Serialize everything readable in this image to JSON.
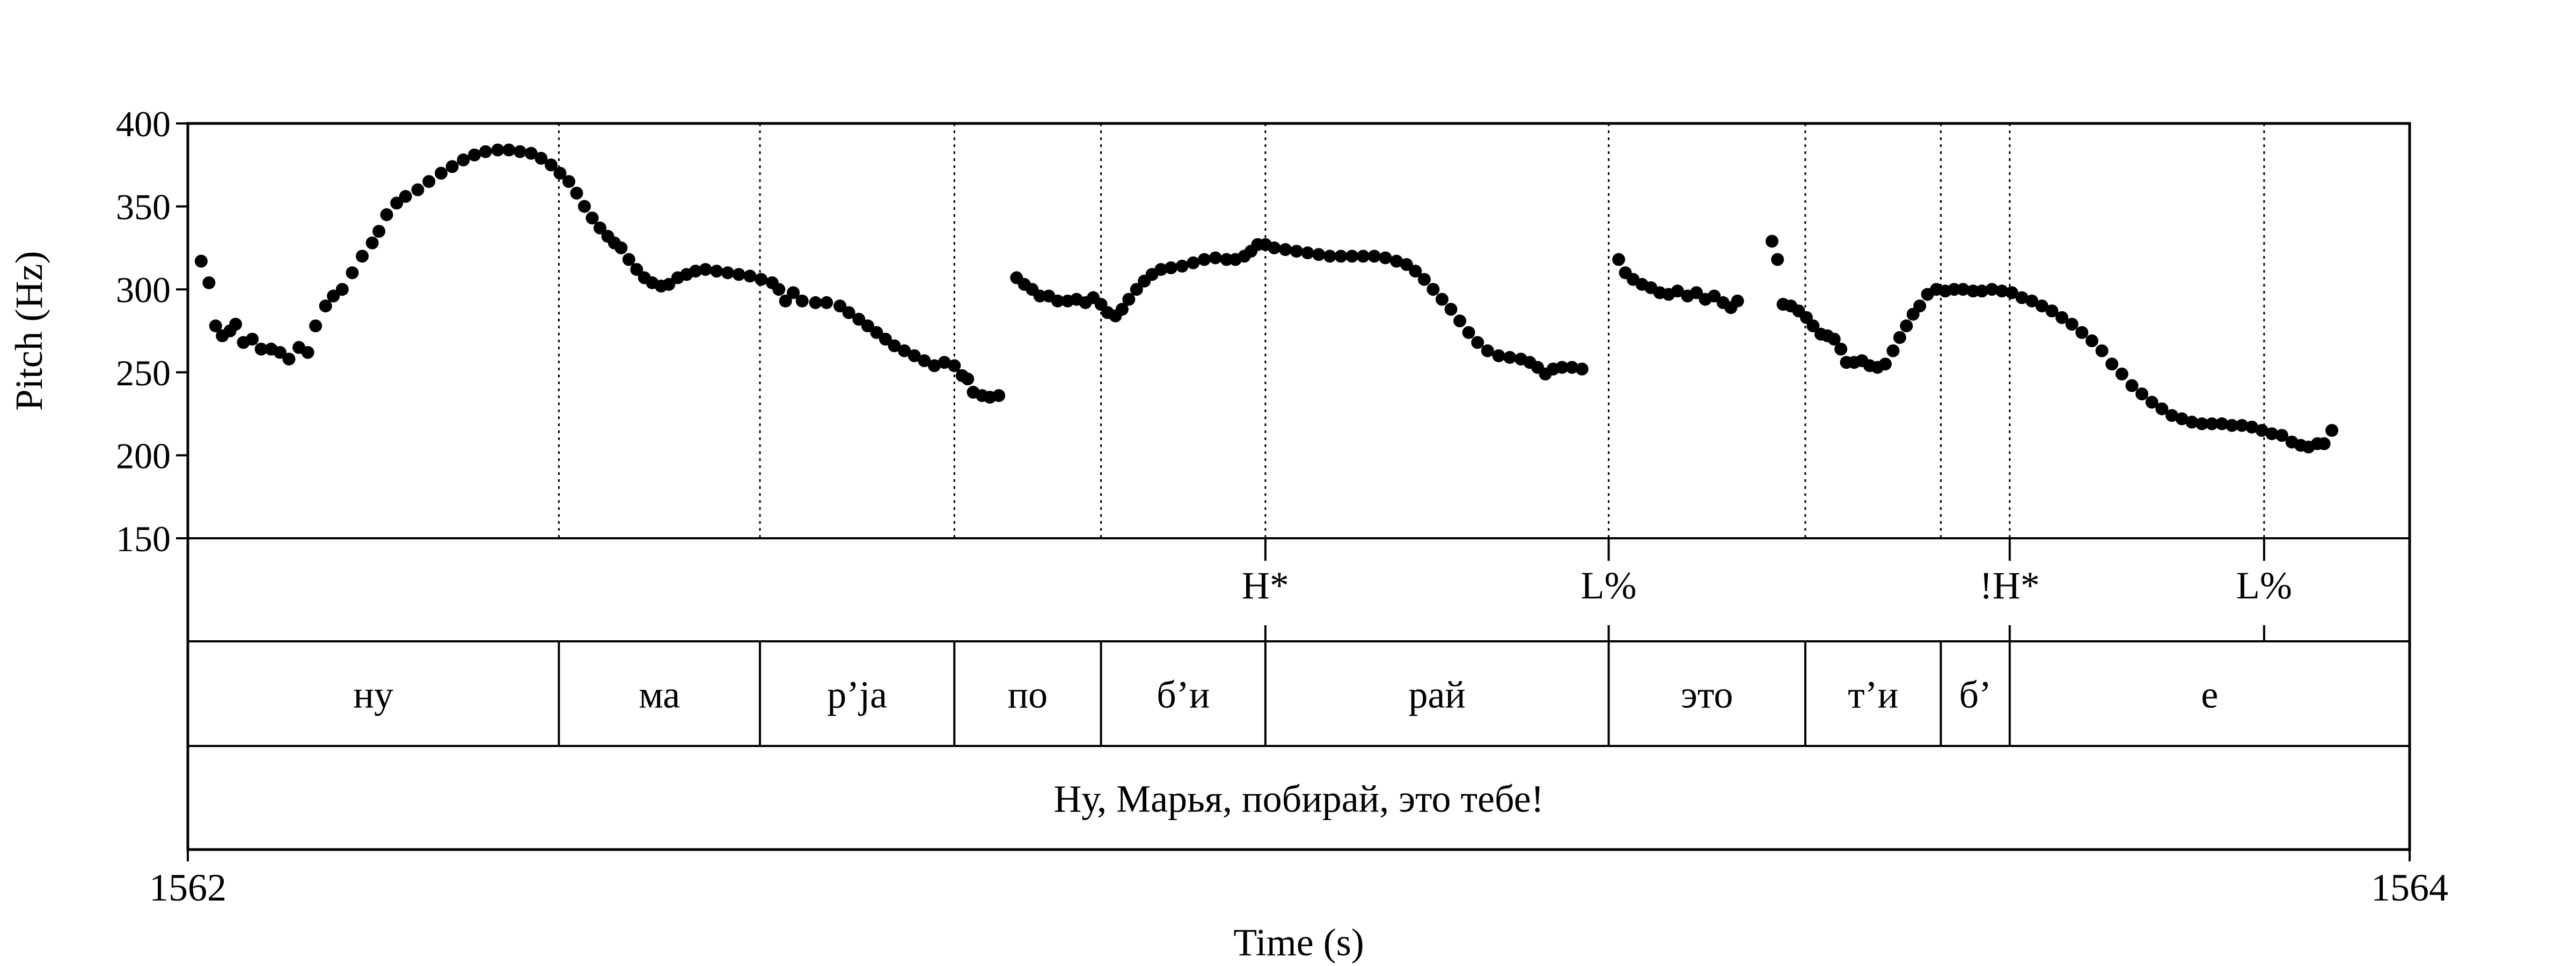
{
  "chart_data": {
    "type": "scatter",
    "title": "",
    "xlabel": "Time (s)",
    "ylabel": "Pitch (Hz)",
    "xlim": [
      1562,
      1564
    ],
    "ylim": [
      150,
      400
    ],
    "x_ticks": [
      1562,
      1564
    ],
    "y_ticks": [
      150,
      200,
      250,
      300,
      350,
      400
    ],
    "grid": false,
    "legend": "none",
    "point_color": "#000000",
    "series": [
      {
        "points": [
          [
            1562.012,
            317
          ],
          [
            1562.019,
            304
          ],
          [
            1562.025,
            278
          ],
          [
            1562.031,
            272
          ],
          [
            1562.038,
            275
          ],
          [
            1562.043,
            279
          ],
          [
            1562.05,
            268
          ],
          [
            1562.058,
            270
          ],
          [
            1562.066,
            264
          ],
          [
            1562.075,
            264
          ],
          [
            1562.083,
            262
          ],
          [
            1562.091,
            258
          ],
          [
            1562.1,
            265
          ],
          [
            1562.108,
            262
          ],
          [
            1562.115,
            278
          ],
          [
            1562.124,
            290
          ],
          [
            1562.131,
            296
          ],
          [
            1562.139,
            300
          ],
          [
            1562.148,
            310
          ],
          [
            1562.157,
            320
          ],
          [
            1562.166,
            328
          ],
          [
            1562.172,
            335
          ],
          [
            1562.179,
            345
          ],
          [
            1562.188,
            352
          ],
          [
            1562.196,
            356
          ],
          [
            1562.207,
            360
          ],
          [
            1562.217,
            365
          ],
          [
            1562.228,
            370
          ],
          [
            1562.238,
            374
          ],
          [
            1562.248,
            378
          ],
          [
            1562.258,
            381
          ],
          [
            1562.268,
            383
          ],
          [
            1562.279,
            384
          ],
          [
            1562.289,
            384
          ],
          [
            1562.299,
            383
          ],
          [
            1562.309,
            382
          ],
          [
            1562.318,
            379
          ],
          [
            1562.327,
            375
          ],
          [
            1562.335,
            370
          ],
          [
            1562.343,
            365
          ],
          [
            1562.35,
            358
          ],
          [
            1562.357,
            350
          ],
          [
            1562.364,
            343
          ],
          [
            1562.371,
            337
          ],
          [
            1562.378,
            332
          ],
          [
            1562.384,
            328
          ],
          [
            1562.39,
            325
          ],
          [
            1562.397,
            318
          ],
          [
            1562.404,
            312
          ],
          [
            1562.411,
            307
          ],
          [
            1562.418,
            304
          ],
          [
            1562.426,
            302
          ],
          [
            1562.433,
            303
          ],
          [
            1562.441,
            307
          ],
          [
            1562.449,
            309
          ],
          [
            1562.457,
            311
          ],
          [
            1562.466,
            312
          ],
          [
            1562.476,
            311
          ],
          [
            1562.486,
            310
          ],
          [
            1562.496,
            309
          ],
          [
            1562.506,
            308
          ],
          [
            1562.516,
            306
          ],
          [
            1562.526,
            304
          ],
          [
            1562.532,
            300
          ],
          [
            1562.538,
            293
          ],
          [
            1562.545,
            298
          ],
          [
            1562.553,
            293
          ],
          [
            1562.565,
            292
          ],
          [
            1562.575,
            292
          ],
          [
            1562.587,
            290
          ],
          [
            1562.595,
            286
          ],
          [
            1562.604,
            282
          ],
          [
            1562.612,
            278
          ],
          [
            1562.62,
            274
          ],
          [
            1562.628,
            270
          ],
          [
            1562.636,
            266
          ],
          [
            1562.645,
            263
          ],
          [
            1562.654,
            260
          ],
          [
            1562.663,
            257
          ],
          [
            1562.672,
            254
          ],
          [
            1562.681,
            256
          ],
          [
            1562.69,
            254
          ],
          [
            1562.697,
            248
          ],
          [
            1562.702,
            246
          ],
          [
            1562.707,
            238
          ],
          [
            1562.715,
            236
          ],
          [
            1562.722,
            235
          ],
          [
            1562.73,
            236
          ],
          [
            1562.746,
            307
          ],
          [
            1562.753,
            303
          ],
          [
            1562.76,
            300
          ],
          [
            1562.767,
            296
          ],
          [
            1562.775,
            296
          ],
          [
            1562.783,
            293
          ],
          [
            1562.792,
            293
          ],
          [
            1562.8,
            294
          ],
          [
            1562.808,
            292
          ],
          [
            1562.815,
            295
          ],
          [
            1562.822,
            291
          ],
          [
            1562.828,
            286
          ],
          [
            1562.835,
            284
          ],
          [
            1562.841,
            288
          ],
          [
            1562.847,
            294
          ],
          [
            1562.854,
            300
          ],
          [
            1562.861,
            305
          ],
          [
            1562.868,
            309
          ],
          [
            1562.876,
            312
          ],
          [
            1562.885,
            313
          ],
          [
            1562.895,
            314
          ],
          [
            1562.905,
            316
          ],
          [
            1562.915,
            318
          ],
          [
            1562.925,
            319
          ],
          [
            1562.935,
            318
          ],
          [
            1562.943,
            318
          ],
          [
            1562.951,
            320
          ],
          [
            1562.957,
            323
          ],
          [
            1562.963,
            327
          ],
          [
            1562.97,
            327
          ],
          [
            1562.978,
            325
          ],
          [
            1562.988,
            324
          ],
          [
            1562.998,
            323
          ],
          [
            1563.008,
            322
          ],
          [
            1563.018,
            321
          ],
          [
            1563.028,
            320
          ],
          [
            1563.038,
            320
          ],
          [
            1563.048,
            320
          ],
          [
            1563.058,
            320
          ],
          [
            1563.068,
            320
          ],
          [
            1563.078,
            319
          ],
          [
            1563.088,
            317
          ],
          [
            1563.097,
            315
          ],
          [
            1563.105,
            311
          ],
          [
            1563.113,
            306
          ],
          [
            1563.121,
            300
          ],
          [
            1563.129,
            294
          ],
          [
            1563.137,
            288
          ],
          [
            1563.145,
            281
          ],
          [
            1563.153,
            274
          ],
          [
            1563.161,
            268
          ],
          [
            1563.17,
            263
          ],
          [
            1563.18,
            260
          ],
          [
            1563.19,
            259
          ],
          [
            1563.2,
            258
          ],
          [
            1563.208,
            256
          ],
          [
            1563.215,
            253
          ],
          [
            1563.222,
            249
          ],
          [
            1563.229,
            252
          ],
          [
            1563.237,
            253
          ],
          [
            1563.246,
            253
          ],
          [
            1563.255,
            252
          ],
          [
            1563.288,
            318
          ],
          [
            1563.294,
            310
          ],
          [
            1563.301,
            306
          ],
          [
            1563.309,
            303
          ],
          [
            1563.317,
            301
          ],
          [
            1563.325,
            298
          ],
          [
            1563.333,
            297
          ],
          [
            1563.341,
            299
          ],
          [
            1563.35,
            296
          ],
          [
            1563.358,
            298
          ],
          [
            1563.366,
            294
          ],
          [
            1563.374,
            296
          ],
          [
            1563.382,
            292
          ],
          [
            1563.389,
            289
          ],
          [
            1563.395,
            293
          ],
          [
            1563.426,
            329
          ],
          [
            1563.431,
            318
          ],
          [
            1563.436,
            291
          ],
          [
            1563.443,
            290
          ],
          [
            1563.45,
            287
          ],
          [
            1563.457,
            283
          ],
          [
            1563.463,
            278
          ],
          [
            1563.47,
            273
          ],
          [
            1563.476,
            272
          ],
          [
            1563.482,
            270
          ],
          [
            1563.488,
            264
          ],
          [
            1563.493,
            256
          ],
          [
            1563.5,
            256
          ],
          [
            1563.507,
            257
          ],
          [
            1563.514,
            254
          ],
          [
            1563.521,
            253
          ],
          [
            1563.528,
            255
          ],
          [
            1563.535,
            263
          ],
          [
            1563.541,
            271
          ],
          [
            1563.547,
            278
          ],
          [
            1563.553,
            285
          ],
          [
            1563.559,
            290
          ],
          [
            1563.566,
            297
          ],
          [
            1563.574,
            300
          ],
          [
            1563.582,
            299
          ],
          [
            1563.59,
            300
          ],
          [
            1563.598,
            300
          ],
          [
            1563.607,
            299
          ],
          [
            1563.615,
            299
          ],
          [
            1563.624,
            300
          ],
          [
            1563.633,
            299
          ],
          [
            1563.642,
            298
          ],
          [
            1563.651,
            295
          ],
          [
            1563.66,
            293
          ],
          [
            1563.669,
            290
          ],
          [
            1563.678,
            287
          ],
          [
            1563.687,
            283
          ],
          [
            1563.696,
            279
          ],
          [
            1563.705,
            274
          ],
          [
            1563.714,
            269
          ],
          [
            1563.723,
            263
          ],
          [
            1563.732,
            255
          ],
          [
            1563.741,
            249
          ],
          [
            1563.75,
            242
          ],
          [
            1563.759,
            237
          ],
          [
            1563.768,
            232
          ],
          [
            1563.777,
            228
          ],
          [
            1563.786,
            224
          ],
          [
            1563.795,
            222
          ],
          [
            1563.804,
            220
          ],
          [
            1563.813,
            219
          ],
          [
            1563.822,
            219
          ],
          [
            1563.831,
            219
          ],
          [
            1563.84,
            218
          ],
          [
            1563.849,
            218
          ],
          [
            1563.858,
            217
          ],
          [
            1563.867,
            215
          ],
          [
            1563.876,
            213
          ],
          [
            1563.885,
            212
          ],
          [
            1563.894,
            208
          ],
          [
            1563.902,
            206
          ],
          [
            1563.909,
            205
          ],
          [
            1563.917,
            207
          ],
          [
            1563.923,
            207
          ],
          [
            1563.93,
            215
          ]
        ]
      }
    ],
    "vertical_boundaries": [
      1562.334,
      1562.515,
      1562.69,
      1562.822,
      1562.97,
      1563.279,
      1563.456,
      1563.578,
      1563.64,
      1563.869
    ],
    "tiers": [
      {
        "name": "tones",
        "labels": [
          {
            "time": 1562.97,
            "text": "H*"
          },
          {
            "time": 1563.279,
            "text": "L%"
          },
          {
            "time": 1563.64,
            "text": "!H*"
          },
          {
            "time": 1563.869,
            "text": "L%"
          }
        ]
      },
      {
        "name": "syllables",
        "boundaries": [
          1562.334,
          1562.515,
          1562.69,
          1562.822,
          1562.97,
          1563.279,
          1563.456,
          1563.578,
          1563.64
        ],
        "labels": [
          {
            "start": 1562.0,
            "end": 1562.334,
            "text": "ну"
          },
          {
            "start": 1562.334,
            "end": 1562.515,
            "text": "ма"
          },
          {
            "start": 1562.515,
            "end": 1562.69,
            "text": "р’ja"
          },
          {
            "start": 1562.69,
            "end": 1562.822,
            "text": "по"
          },
          {
            "start": 1562.822,
            "end": 1562.97,
            "text": "б’и"
          },
          {
            "start": 1562.97,
            "end": 1563.279,
            "text": "рай"
          },
          {
            "start": 1563.279,
            "end": 1563.456,
            "text": "это"
          },
          {
            "start": 1563.456,
            "end": 1563.578,
            "text": "т’и"
          },
          {
            "start": 1563.578,
            "end": 1563.64,
            "text": "б’"
          },
          {
            "start": 1563.64,
            "end": 1564.0,
            "text": "е"
          }
        ]
      },
      {
        "name": "phrase",
        "labels": [
          {
            "start": 1562.0,
            "end": 1564.0,
            "text": "Ну, Марья, побирай, это тебе!"
          }
        ]
      }
    ]
  }
}
